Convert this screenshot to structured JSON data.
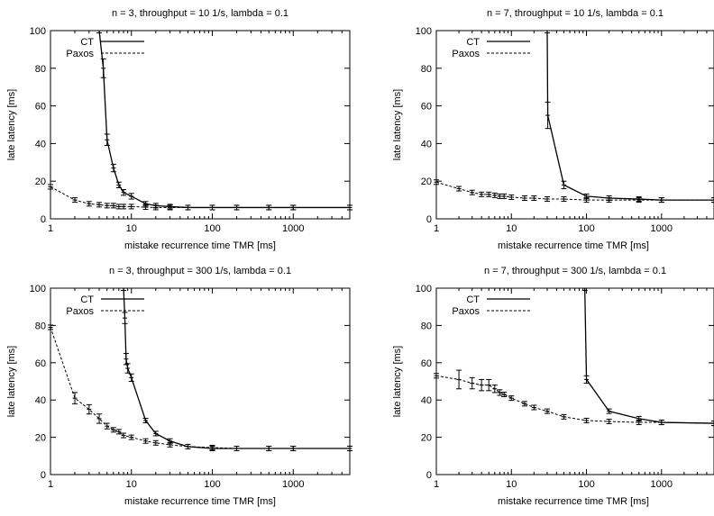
{
  "chart_data": [
    {
      "type": "line",
      "title": "n = 3, throughput = 10 1/s, lambda = 0.1",
      "xlabel": "mistake recurrence time TMR [ms]",
      "ylabel": "late latency [ms]",
      "xscale": "log",
      "xlim": [
        1,
        5000
      ],
      "ylim": [
        0,
        100
      ],
      "xticks": [
        1,
        10,
        100,
        1000
      ],
      "xtick_labels": [
        "1",
        "10",
        "100",
        "1000"
      ],
      "yticks": [
        0,
        20,
        40,
        60,
        80,
        100
      ],
      "ytick_labels": [
        "0",
        "20",
        "40",
        "60",
        "80",
        "100"
      ],
      "grid": false,
      "legend": "top-left",
      "series": [
        {
          "name": "CT",
          "style": "solid",
          "x": [
            4,
            4.5,
            5,
            6,
            7,
            8,
            10,
            15,
            20,
            30,
            50,
            100,
            200,
            500,
            1000,
            5000
          ],
          "y": [
            100,
            80,
            42,
            27,
            18,
            14,
            12,
            8,
            7,
            6.5,
            6,
            6,
            6,
            6,
            6,
            6
          ],
          "err": [
            0,
            5,
            3,
            2,
            1.5,
            1.5,
            1.5,
            0.8,
            0.6,
            0.4,
            0.3,
            0.2,
            0.2,
            0.2,
            0.2,
            0.2
          ]
        },
        {
          "name": "Paxos",
          "style": "dashed",
          "x": [
            1,
            2,
            3,
            4,
            5,
            6,
            7,
            8,
            10,
            15,
            20,
            30,
            50,
            100,
            200,
            500,
            1000,
            5000
          ],
          "y": [
            17,
            10,
            8,
            7.5,
            7,
            7,
            6.5,
            6.5,
            6.5,
            6.2,
            6,
            6,
            6,
            6,
            6,
            6,
            6,
            6
          ],
          "err": [
            0.5,
            0.8,
            0.5,
            0.4,
            0.3,
            0.3,
            0.3,
            0.3,
            0.3,
            0.3,
            0.2,
            0.2,
            0.2,
            0.2,
            0.2,
            0.2,
            0.2,
            0.2
          ]
        }
      ]
    },
    {
      "type": "line",
      "title": "n = 7, throughput = 10 1/s, lambda = 0.1",
      "xlabel": "mistake recurrence time TMR [ms]",
      "ylabel": "late latency [ms]",
      "xscale": "log",
      "xlim": [
        1,
        5000
      ],
      "ylim": [
        0,
        100
      ],
      "xticks": [
        1,
        10,
        100,
        1000
      ],
      "xtick_labels": [
        "1",
        "10",
        "100",
        "1000"
      ],
      "yticks": [
        0,
        20,
        40,
        60,
        80,
        100
      ],
      "ytick_labels": [
        "0",
        "20",
        "40",
        "60",
        "80",
        "100"
      ],
      "grid": false,
      "legend": "top-left",
      "series": [
        {
          "name": "CT",
          "style": "solid",
          "x": [
            30,
            30.5,
            50,
            100,
            200,
            500,
            1000,
            5000
          ],
          "y": [
            100,
            55,
            18,
            12,
            11,
            10.5,
            10,
            10
          ],
          "err": [
            0,
            7,
            2,
            1,
            0.6,
            0.4,
            0.3,
            0.3
          ]
        },
        {
          "name": "Paxos",
          "style": "dashed",
          "x": [
            1,
            2,
            3,
            4,
            5,
            6,
            7,
            8,
            10,
            15,
            20,
            30,
            50,
            100,
            200,
            500,
            1000,
            5000
          ],
          "y": [
            19.5,
            16,
            14,
            13,
            13,
            12.5,
            12,
            12,
            11.5,
            11,
            11,
            10.5,
            10.5,
            10,
            10,
            10,
            10,
            10
          ],
          "err": [
            0.5,
            0.5,
            0.5,
            0.5,
            0.4,
            0.4,
            0.4,
            0.4,
            0.4,
            0.3,
            0.3,
            0.3,
            0.3,
            0.3,
            0.3,
            0.3,
            0.3,
            0.3
          ]
        }
      ]
    },
    {
      "type": "line",
      "title": "n = 3, throughput = 300 1/s, lambda = 0.1",
      "xlabel": "mistake recurrence time TMR [ms]",
      "ylabel": "late latency [ms]",
      "xscale": "log",
      "xlim": [
        1,
        5000
      ],
      "ylim": [
        0,
        100
      ],
      "xticks": [
        1,
        10,
        100,
        1000
      ],
      "xtick_labels": [
        "1",
        "10",
        "100",
        "1000"
      ],
      "yticks": [
        0,
        20,
        40,
        60,
        80,
        100
      ],
      "ytick_labels": [
        "0",
        "20",
        "40",
        "60",
        "80",
        "100"
      ],
      "grid": false,
      "legend": "top-left",
      "series": [
        {
          "name": "CT",
          "style": "solid",
          "x": [
            8,
            8.3,
            8.6,
            9,
            10,
            15,
            20,
            30,
            50,
            100,
            200,
            500,
            1000,
            5000
          ],
          "y": [
            100,
            84,
            62,
            57,
            52,
            29,
            22,
            18,
            15,
            14,
            14,
            14,
            14,
            14
          ],
          "err": [
            0,
            3,
            3,
            2.5,
            2,
            1,
            0.8,
            0.6,
            0.4,
            0.3,
            0.3,
            0.3,
            0.3,
            0.3
          ]
        },
        {
          "name": "Paxos",
          "style": "dashed",
          "x": [
            1,
            2,
            3,
            4,
            5,
            6,
            7,
            8,
            10,
            15,
            20,
            30,
            50,
            100,
            200,
            500,
            1000,
            5000
          ],
          "y": [
            79,
            41,
            35,
            30,
            26,
            24,
            23,
            21,
            20,
            18,
            17,
            16,
            15,
            14.5,
            14,
            14,
            14,
            14
          ],
          "err": [
            0,
            3,
            2.5,
            2.5,
            1.5,
            1,
            1,
            0.8,
            0.8,
            0.6,
            0.5,
            0.4,
            0.4,
            0.3,
            0.3,
            0.3,
            0.3,
            0.3
          ]
        }
      ]
    },
    {
      "type": "line",
      "title": "n = 7, throughput = 300 1/s, lambda = 0.1",
      "xlabel": "mistake recurrence time TMR [ms]",
      "ylabel": "late latency [ms]",
      "xscale": "log",
      "xlim": [
        1,
        5000
      ],
      "ylim": [
        0,
        100
      ],
      "xticks": [
        1,
        10,
        100,
        1000
      ],
      "xtick_labels": [
        "1",
        "10",
        "100",
        "1000"
      ],
      "yticks": [
        0,
        20,
        40,
        60,
        80,
        100
      ],
      "ytick_labels": [
        "0",
        "20",
        "40",
        "60",
        "80",
        "100"
      ],
      "grid": false,
      "legend": "top-left",
      "series": [
        {
          "name": "CT",
          "style": "solid",
          "x": [
            95,
            100,
            200,
            500,
            1000,
            5000
          ],
          "y": [
            100,
            51,
            34,
            30,
            28,
            27.5
          ],
          "err": [
            0,
            2,
            1,
            0.8,
            0.6,
            0.5
          ]
        },
        {
          "name": "Paxos",
          "style": "dashed",
          "x": [
            1,
            2,
            3,
            4,
            5,
            6,
            7,
            8,
            10,
            15,
            20,
            30,
            50,
            100,
            200,
            500,
            1000,
            5000
          ],
          "y": [
            53,
            51,
            49,
            48,
            48,
            46,
            44,
            43,
            41,
            38,
            36,
            34,
            31,
            29,
            28.5,
            28,
            28,
            27.5
          ],
          "err": [
            0,
            5,
            3,
            3,
            3,
            2,
            1.5,
            1.2,
            1,
            0.8,
            0.8,
            0.6,
            0.5,
            0.5,
            0.5,
            0.5,
            0.5,
            0.5
          ]
        }
      ]
    }
  ]
}
